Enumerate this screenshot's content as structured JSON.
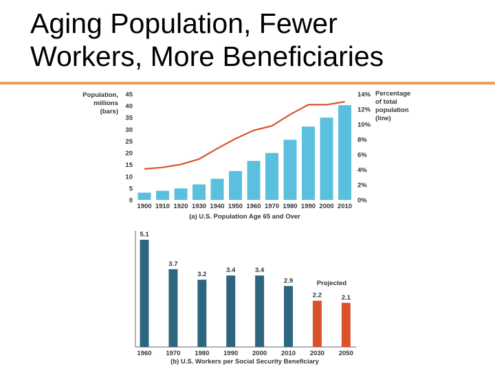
{
  "slide": {
    "title_line1": "Aging Population, Fewer",
    "title_line2": "Workers, More Beneficiaries",
    "accent_color": "#E8A05A"
  },
  "chart_data": [
    {
      "type": "bar+line",
      "caption": "(a) U.S. Population Age 65 and Over",
      "y_left_label": [
        "Population,",
        "millions",
        "(bars)"
      ],
      "y_right_label": [
        "Percentage",
        "of total",
        "population",
        "(line)"
      ],
      "categories": [
        "1900",
        "1910",
        "1920",
        "1930",
        "1940",
        "1950",
        "1960",
        "1970",
        "1980",
        "1990",
        "2000",
        "2010"
      ],
      "bars": {
        "values": [
          3.1,
          3.9,
          4.9,
          6.6,
          9.0,
          12.3,
          16.6,
          20.0,
          25.6,
          31.2,
          35.0,
          40.3
        ],
        "color": "#5BC0DE"
      },
      "line": {
        "values": [
          4.1,
          4.3,
          4.7,
          5.4,
          6.8,
          8.1,
          9.2,
          9.8,
          11.3,
          12.6,
          12.6,
          13.0
        ],
        "color": "#D9532A"
      },
      "ylim_left": [
        0,
        45
      ],
      "yticks_left": [
        "0",
        "5",
        "10",
        "15",
        "20",
        "25",
        "30",
        "35",
        "40",
        "45"
      ],
      "ylim_right": [
        0,
        14
      ],
      "yticks_right": [
        "0%",
        "2%",
        "4%",
        "6%",
        "8%",
        "10%",
        "12%",
        "14%"
      ],
      "grid": false
    },
    {
      "type": "bar",
      "caption": "(b) U.S. Workers per Social Security Beneficiary",
      "categories": [
        "1960",
        "1970",
        "1980",
        "1990",
        "2000",
        "2010",
        "2030",
        "2050"
      ],
      "values": [
        5.1,
        3.7,
        3.2,
        3.4,
        3.4,
        2.9,
        2.2,
        2.1
      ],
      "labels": [
        "5.1",
        "3.7",
        "3.2",
        "3.4",
        "3.4",
        "2.9",
        "2.2",
        "2.1"
      ],
      "projected": [
        false,
        false,
        false,
        false,
        false,
        false,
        true,
        true
      ],
      "projected_label": "Projected",
      "colors": {
        "actual": "#2E6680",
        "projected": "#D9532A"
      },
      "ylim": [
        0,
        5.1
      ],
      "grid": false
    }
  ]
}
